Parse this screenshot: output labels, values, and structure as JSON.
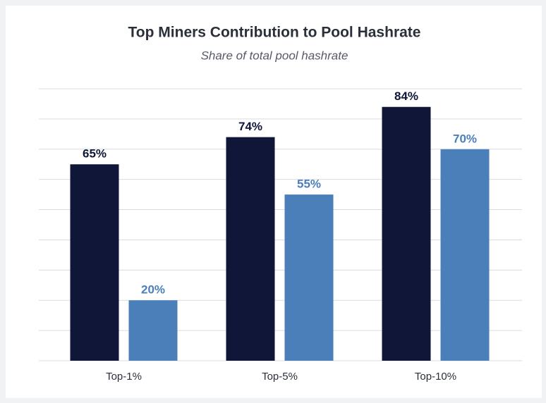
{
  "chart_data": {
    "type": "bar",
    "title": "Top Miners Contribution to Pool Hashrate",
    "subtitle": "Share of total pool hashrate",
    "categories": [
      "Top-1%",
      "Top-5%",
      "Top-10%"
    ],
    "series": [
      {
        "color": "#0f1638",
        "values": [
          65,
          74,
          84
        ],
        "value_labels": [
          "65%",
          "74%",
          "84%"
        ]
      },
      {
        "color": "#4a7fba",
        "values": [
          20,
          55,
          70
        ],
        "value_labels": [
          "20%",
          "55%",
          "70%"
        ]
      }
    ],
    "ylim": [
      0,
      90
    ],
    "yticks": [
      0,
      10,
      20,
      30,
      40,
      50,
      60,
      70,
      80,
      90
    ],
    "grid": true
  }
}
